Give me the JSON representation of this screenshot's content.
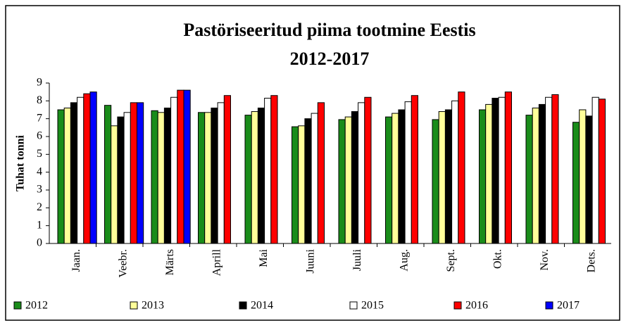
{
  "chart_data": {
    "type": "bar",
    "title": "Pastöriseeritud piima tootmine Eestis",
    "subtitle": "2012-2017",
    "y_label": "Tuhat tonni",
    "categories": [
      "Jaan.",
      "Veebr.",
      "Märts",
      "Aprill",
      "Mai",
      "Juuni",
      "Juuli",
      "Aug.",
      "Sept.",
      "Okt.",
      "Nov.",
      "Dets."
    ],
    "series": [
      {
        "name": "2012",
        "color": "#1a8c1a",
        "values": [
          7.5,
          7.75,
          7.45,
          7.35,
          7.2,
          6.55,
          6.95,
          7.1,
          6.95,
          7.5,
          7.2,
          6.8
        ]
      },
      {
        "name": "2013",
        "color": "#ffff99",
        "values": [
          7.6,
          6.6,
          7.35,
          7.35,
          7.4,
          6.6,
          7.1,
          7.3,
          7.4,
          7.8,
          7.6,
          7.5
        ]
      },
      {
        "name": "2014",
        "color": "#000000",
        "values": [
          7.9,
          7.1,
          7.6,
          7.6,
          7.6,
          7.0,
          7.4,
          7.5,
          7.5,
          8.15,
          7.8,
          7.15
        ]
      },
      {
        "name": "2015",
        "color": "#ffffff",
        "values": [
          8.2,
          7.35,
          8.2,
          7.9,
          8.15,
          7.3,
          7.9,
          7.95,
          8.0,
          8.2,
          8.2,
          8.2
        ]
      },
      {
        "name": "2016",
        "color": "#ff0000",
        "values": [
          8.4,
          7.9,
          8.6,
          8.3,
          8.3,
          7.9,
          8.2,
          8.3,
          8.5,
          8.5,
          8.35,
          8.1
        ]
      },
      {
        "name": "2017",
        "color": "#0000ff",
        "values": [
          8.5,
          7.9,
          8.6,
          null,
          null,
          null,
          null,
          null,
          null,
          null,
          null,
          null
        ]
      }
    ],
    "ylim": [
      0,
      9
    ],
    "yticks": [
      0,
      1,
      2,
      3,
      4,
      5,
      6,
      7,
      8,
      9
    ],
    "grid": false,
    "legend": "bottom"
  }
}
